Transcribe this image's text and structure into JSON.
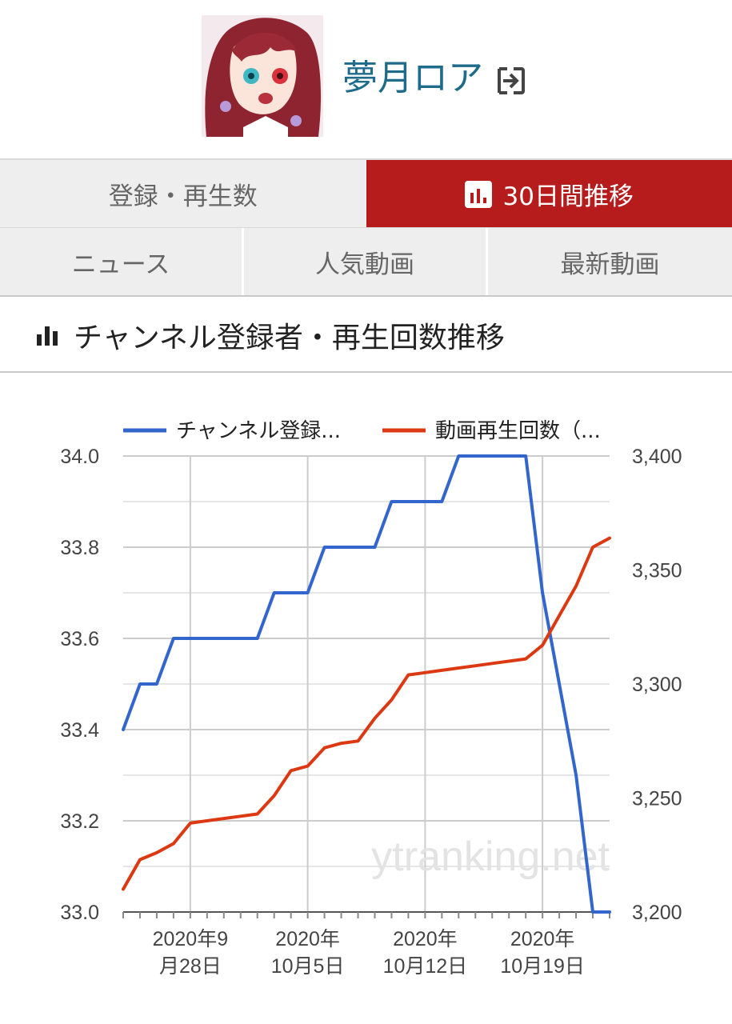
{
  "header": {
    "channel_name": "夢月ロア"
  },
  "tabs_row1": [
    {
      "label": "登録・再生数",
      "active": false
    },
    {
      "label": "30日間推移",
      "active": true,
      "icon": "bar-chart-icon"
    }
  ],
  "tabs_row2": [
    {
      "label": "ニュース"
    },
    {
      "label": "人気動画"
    },
    {
      "label": "最新動画"
    }
  ],
  "section": {
    "title": "チャンネル登録者・再生回数推移",
    "icon": "bar-chart-icon"
  },
  "watermark": "ytranking.net",
  "colors": {
    "accent": "#b71c1c",
    "series_blue": "#3366cc",
    "series_red": "#dc3912",
    "link": "#1e6b8a"
  },
  "chart_data": {
    "type": "line",
    "legend": {
      "position": "top",
      "entries": [
        "チャンネル登録...",
        "動画再生回数（..."
      ]
    },
    "y_left": {
      "ylim": [
        33.0,
        34.0
      ],
      "ticks": [
        "33.0",
        "33.2",
        "33.4",
        "33.6",
        "33.8",
        "34.0"
      ]
    },
    "y_right": {
      "ylim": [
        3200,
        3400
      ],
      "ticks": [
        "3,200",
        "3,250",
        "3,300",
        "3,350",
        "3,400"
      ]
    },
    "x_range": [
      "2020-09-24",
      "2020-10-23"
    ],
    "x_ticks": [
      {
        "date": "2020-09-28",
        "line1": "2020年9",
        "line2": "月28日"
      },
      {
        "date": "2020-10-05",
        "line1": "2020年",
        "line2": "10月5日"
      },
      {
        "date": "2020-10-12",
        "line1": "2020年",
        "line2": "10月12日"
      },
      {
        "date": "2020-10-19",
        "line1": "2020年",
        "line2": "10月19日"
      }
    ],
    "grid": true,
    "series": [
      {
        "name": "チャンネル登録...",
        "axis": "left",
        "color": "#3366cc",
        "points": [
          [
            "2020-09-24",
            33.4
          ],
          [
            "2020-09-25",
            33.5
          ],
          [
            "2020-09-26",
            33.5
          ],
          [
            "2020-09-27",
            33.6
          ],
          [
            "2020-09-28",
            33.6
          ],
          [
            "2020-09-29",
            33.6
          ],
          [
            "2020-09-30",
            33.6
          ],
          [
            "2020-10-01",
            33.6
          ],
          [
            "2020-10-02",
            33.6
          ],
          [
            "2020-10-03",
            33.7
          ],
          [
            "2020-10-04",
            33.7
          ],
          [
            "2020-10-05",
            33.7
          ],
          [
            "2020-10-06",
            33.8
          ],
          [
            "2020-10-07",
            33.8
          ],
          [
            "2020-10-08",
            33.8
          ],
          [
            "2020-10-09",
            33.8
          ],
          [
            "2020-10-10",
            33.9
          ],
          [
            "2020-10-11",
            33.9
          ],
          [
            "2020-10-12",
            33.9
          ],
          [
            "2020-10-13",
            33.9
          ],
          [
            "2020-10-14",
            34.0
          ],
          [
            "2020-10-15",
            34.0
          ],
          [
            "2020-10-16",
            34.0
          ],
          [
            "2020-10-17",
            34.0
          ],
          [
            "2020-10-18",
            34.0
          ],
          [
            "2020-10-19",
            33.7
          ],
          [
            "2020-10-20",
            33.5
          ],
          [
            "2020-10-21",
            33.3
          ],
          [
            "2020-10-22",
            33.0
          ],
          [
            "2020-10-23",
            33.0
          ]
        ]
      },
      {
        "name": "動画再生回数（...",
        "axis": "right",
        "color": "#dc3912",
        "points": [
          [
            "2020-09-24",
            3210
          ],
          [
            "2020-09-25",
            3223
          ],
          [
            "2020-09-26",
            3226
          ],
          [
            "2020-09-27",
            3230
          ],
          [
            "2020-09-28",
            3239
          ],
          [
            "2020-09-29",
            3240
          ],
          [
            "2020-09-30",
            3241
          ],
          [
            "2020-10-01",
            3242
          ],
          [
            "2020-10-02",
            3243
          ],
          [
            "2020-10-03",
            3251
          ],
          [
            "2020-10-04",
            3262
          ],
          [
            "2020-10-05",
            3264
          ],
          [
            "2020-10-06",
            3272
          ],
          [
            "2020-10-07",
            3274
          ],
          [
            "2020-10-08",
            3275
          ],
          [
            "2020-10-09",
            3285
          ],
          [
            "2020-10-10",
            3293
          ],
          [
            "2020-10-11",
            3304
          ],
          [
            "2020-10-12",
            3305
          ],
          [
            "2020-10-13",
            3306
          ],
          [
            "2020-10-14",
            3307
          ],
          [
            "2020-10-15",
            3308
          ],
          [
            "2020-10-16",
            3309
          ],
          [
            "2020-10-17",
            3310
          ],
          [
            "2020-10-18",
            3311
          ],
          [
            "2020-10-19",
            3317
          ],
          [
            "2020-10-20",
            3330
          ],
          [
            "2020-10-21",
            3343
          ],
          [
            "2020-10-22",
            3360
          ],
          [
            "2020-10-23",
            3364
          ]
        ]
      }
    ]
  }
}
